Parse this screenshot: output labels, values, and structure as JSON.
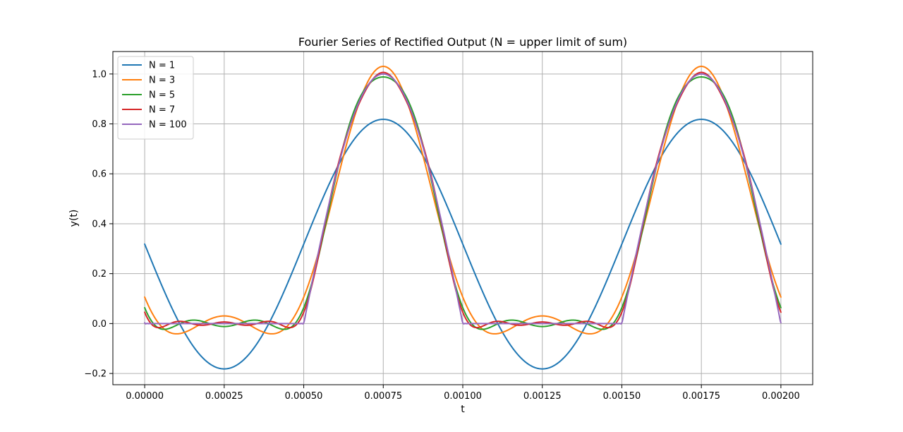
{
  "chart_data": {
    "type": "line",
    "title": "Fourier Series of Rectified Output (N = upper limit of sum)",
    "xlabel": "t",
    "ylabel": "y(t)",
    "xlim": [
      -0.0001,
      0.0021
    ],
    "ylim": [
      -0.245,
      1.09
    ],
    "x_ticks": [
      0.0,
      0.00025,
      0.0005,
      0.00075,
      0.001,
      0.00125,
      0.0015,
      0.00175,
      0.002
    ],
    "x_tick_labels": [
      "0.00000",
      "0.00025",
      "0.00050",
      "0.00075",
      "0.00100",
      "0.00125",
      "0.00150",
      "0.00175",
      "0.00200"
    ],
    "y_ticks": [
      -0.2,
      0.0,
      0.2,
      0.4,
      0.6,
      0.8,
      1.0
    ],
    "y_tick_labels": [
      "−0.2",
      "0.0",
      "0.2",
      "0.4",
      "0.6",
      "0.8",
      "1.0"
    ],
    "grid": true,
    "legend_position": "top-left",
    "signal": {
      "period": 0.001,
      "t_start": 0.0,
      "t_end": 0.002
    },
    "series": [
      {
        "name": "N = 1",
        "N": 1,
        "color": "#1f77b4"
      },
      {
        "name": "N = 3",
        "N": 3,
        "color": "#ff7f0e"
      },
      {
        "name": "N = 5",
        "N": 5,
        "color": "#2ca02c"
      },
      {
        "name": "N = 7",
        "N": 7,
        "color": "#d62728"
      },
      {
        "name": "N = 100",
        "N": 100,
        "color": "#9467bd"
      }
    ]
  }
}
